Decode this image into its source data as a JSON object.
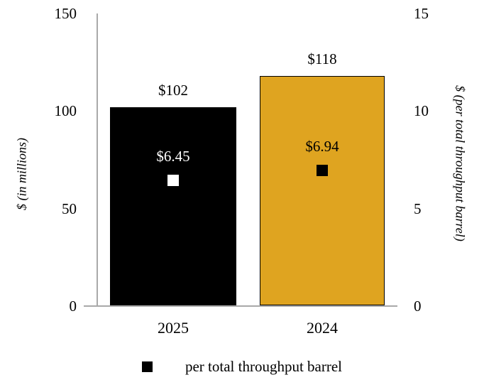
{
  "chart_data": {
    "type": "bar",
    "categories": [
      "2025",
      "2024"
    ],
    "bar_series": {
      "axis": "left",
      "values": [
        102,
        118
      ],
      "data_labels": [
        "$102",
        "$118"
      ],
      "colors": [
        "#000000",
        "#DFA420"
      ]
    },
    "marker_series": {
      "axis": "right",
      "name": "per total throughput barrel",
      "values": [
        6.45,
        6.94
      ],
      "data_labels": [
        "$6.45",
        "$6.94"
      ],
      "colors": [
        "#FFFFFF",
        "#000000"
      ]
    },
    "axes": {
      "left": {
        "label": "$ (in millions)",
        "range": [
          0,
          150
        ],
        "ticks": [
          0,
          50,
          100,
          150
        ]
      },
      "right": {
        "label": "$ (per total throughput barrel)",
        "range": [
          0,
          15
        ],
        "ticks": [
          0,
          5,
          10,
          15
        ]
      }
    },
    "legend": {
      "swatch_color": "#000000",
      "label": "per total throughput barrel",
      "position": "bottom"
    },
    "grid": false,
    "axis_line_color": "#A9A9A9"
  }
}
